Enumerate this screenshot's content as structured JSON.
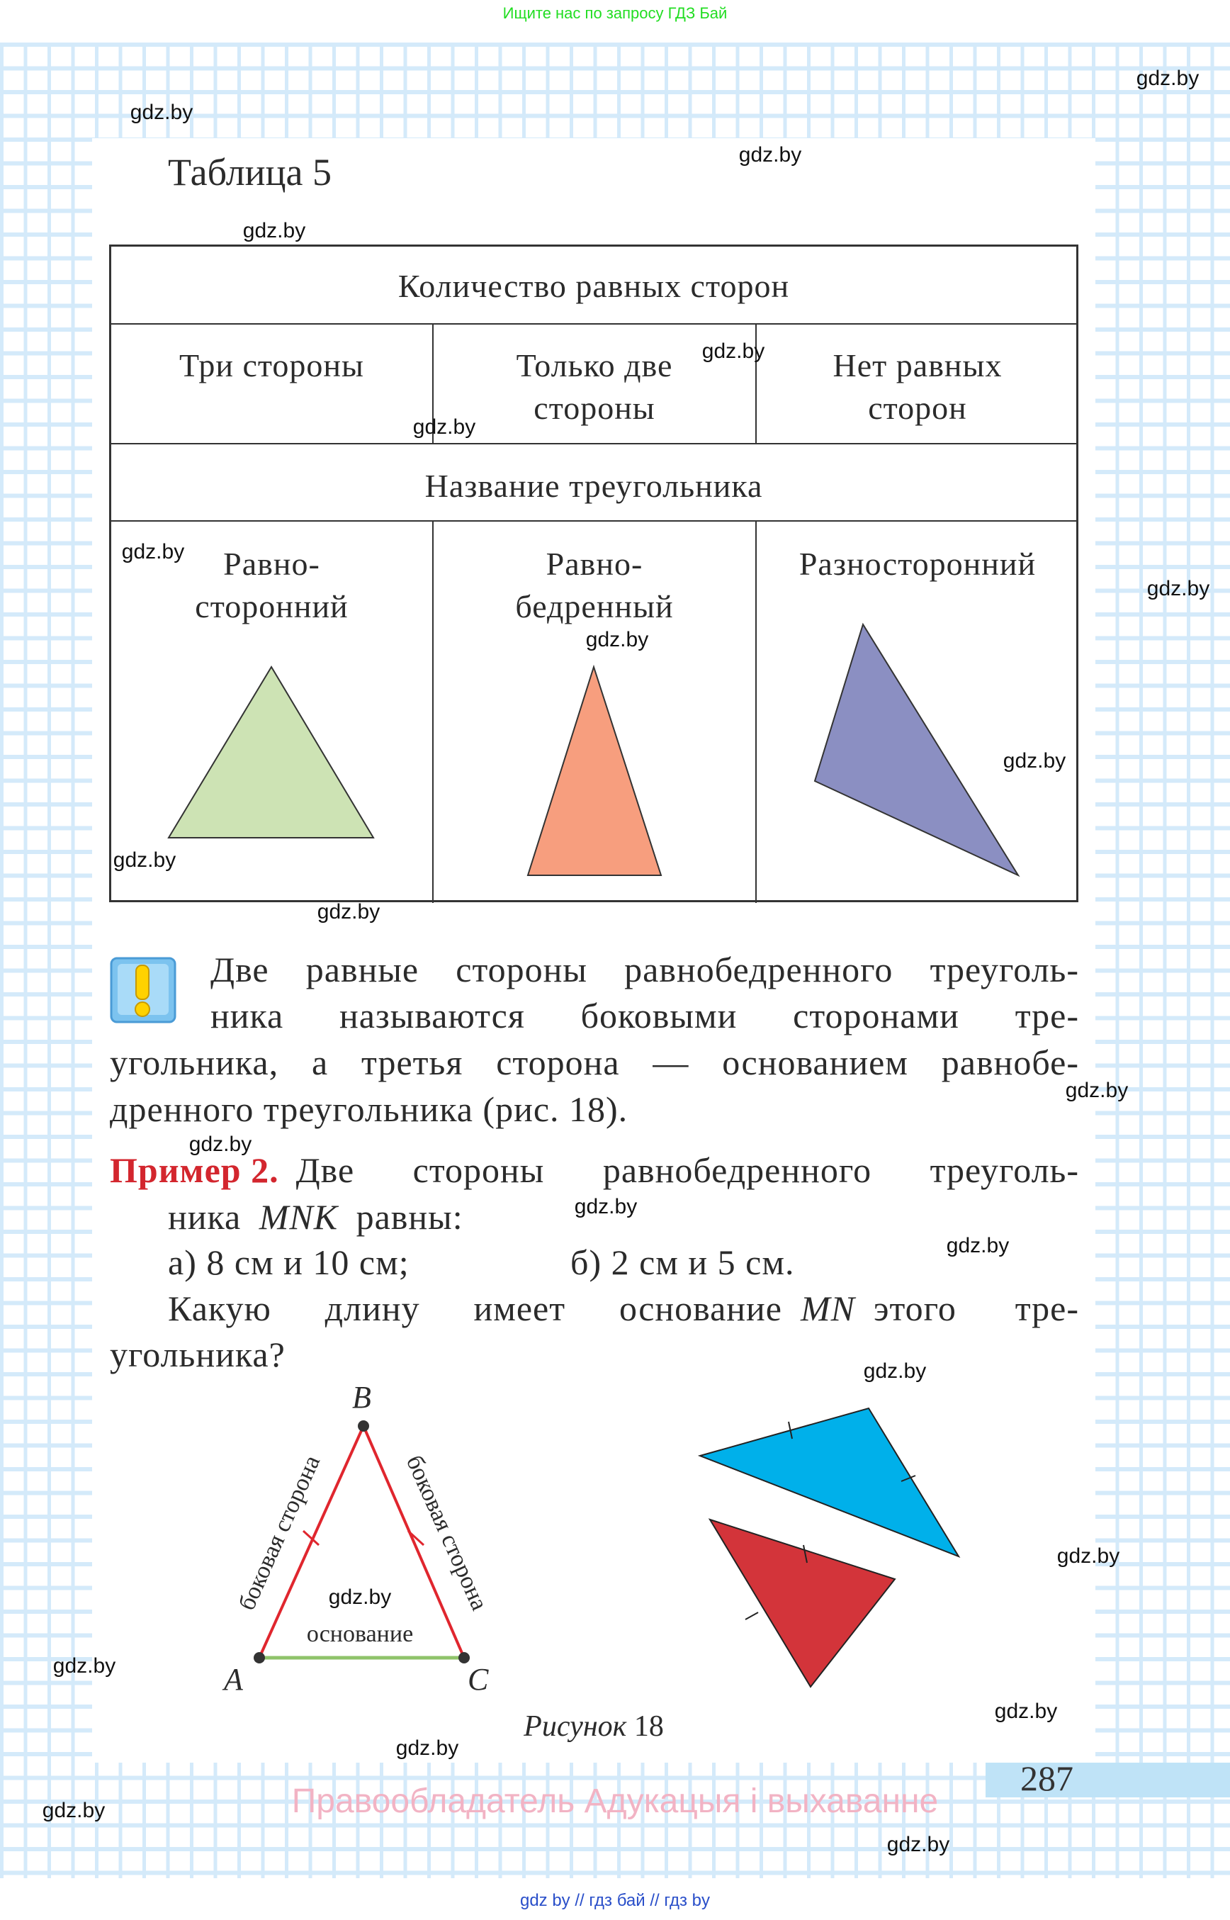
{
  "top_note": "Ищите нас по запросу ГДЗ Бай",
  "watermark": "gdz.by",
  "table_title": "Таблица 5",
  "table": {
    "header": "Количество равных сторон",
    "counts": [
      [
        "Три стороны"
      ],
      [
        "Только две",
        "стороны"
      ],
      [
        "Нет равных",
        "сторон"
      ]
    ],
    "name_header": "Название треугольника",
    "names": [
      [
        "Равно-",
        "сторонний"
      ],
      [
        "Равно-",
        "бедренный"
      ],
      [
        "Разносторонний"
      ]
    ],
    "triangle_colors": [
      "#cde3b4",
      "#f79e7e",
      "#8b8fc2"
    ]
  },
  "note": {
    "icon": "exclamation-icon",
    "lines": [
      "Две равные стороны равнобедренного треуголь-",
      "ника называются боковыми сторонами тре-",
      "угольника, а третья сторона — основанием равнобе-",
      "дренного треугольника (рис. 18)."
    ]
  },
  "example": {
    "label": "Пример 2.",
    "line1": "Две стороны равнобедренного треуголь-",
    "line2_prefix": "ника",
    "line2_var": "MNK",
    "line2_suffix": "равны:",
    "option_a": "а) 8 см и 10 см;",
    "option_b": "б) 2 см и 5 см.",
    "question_prefix": "Какую длину имеет основание",
    "question_var": "MN",
    "question_suffix": "этого тре-",
    "question_end": "угольника?"
  },
  "figure": {
    "vertex_b": "B",
    "vertex_a": "A",
    "vertex_c": "C",
    "side_label": "боковая сторона",
    "base_label": "основание",
    "caption_word": "Рисунок",
    "caption_num": "18",
    "colors": {
      "sides": "#e0262e",
      "base": "#8fc36a",
      "blue": "#00b0ea",
      "red": "#d3343a"
    }
  },
  "page_number": "287",
  "rights": "Правообладатель Адукацыя і выхаванне",
  "bottom_links": "gdz by  //  гдз бай  //  гдз by"
}
